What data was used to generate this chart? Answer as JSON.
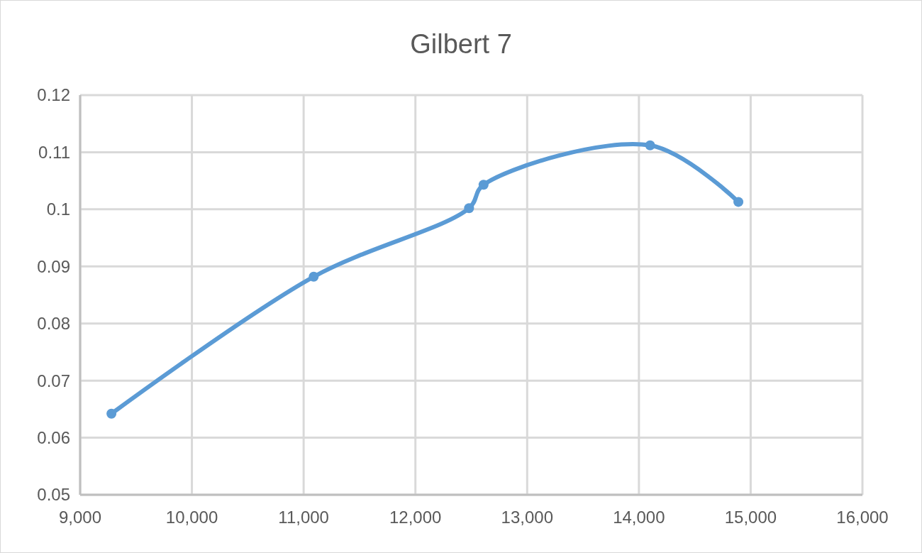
{
  "chart_data": {
    "type": "line",
    "title": "Gilbert 7",
    "x": [
      9280,
      11090,
      12480,
      12610,
      14100,
      14890
    ],
    "series": [
      {
        "color": "#5b9bd5",
        "values": [
          0.0642,
          0.0882,
          0.1002,
          0.1043,
          0.1112,
          0.1013
        ]
      }
    ],
    "xlim": [
      9000,
      16000
    ],
    "xticks": [
      {
        "value": 9000,
        "label": "9,000"
      },
      {
        "value": 10000,
        "label": "10,000"
      },
      {
        "value": 11000,
        "label": "11,000"
      },
      {
        "value": 12000,
        "label": "12,000"
      },
      {
        "value": 13000,
        "label": "13,000"
      },
      {
        "value": 14000,
        "label": "14,000"
      },
      {
        "value": 15000,
        "label": "15,000"
      },
      {
        "value": 16000,
        "label": "16,000"
      }
    ],
    "ylim": [
      0.05,
      0.12
    ],
    "yticks": [
      0.05,
      0.06,
      0.07,
      0.08,
      0.09,
      0.1,
      0.11,
      0.12
    ],
    "grid": true,
    "marker": "circle",
    "line_style": "solid"
  }
}
